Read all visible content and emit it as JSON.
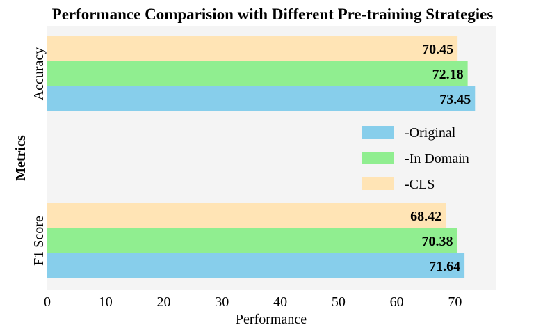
{
  "chart_data": {
    "type": "bar",
    "orientation": "horizontal",
    "title": "Performance Comparision with Different Pre-training Strategies",
    "xlabel": "Performance",
    "ylabel": "Metrics",
    "xlim": [
      0,
      77
    ],
    "xticks": [
      "0",
      "10",
      "20",
      "30",
      "40",
      "50",
      "60",
      "70"
    ],
    "grid": false,
    "legend_position": "center-right",
    "categories": [
      "Accuracy",
      "F1 Score"
    ],
    "series": [
      {
        "name": "-Original",
        "color": "#87ceeb",
        "values": [
          73.45,
          71.64
        ],
        "labels": [
          "73.45",
          "71.64"
        ]
      },
      {
        "name": "-In Domain",
        "color": "#90ee90",
        "values": [
          72.18,
          70.38
        ],
        "labels": [
          "72.18",
          "70.38"
        ]
      },
      {
        "name": "-CLS",
        "color": "#ffe4b5",
        "values": [
          70.45,
          68.42
        ],
        "labels": [
          "70.45",
          "68.42"
        ]
      }
    ],
    "plot_background": "#f4f4f4"
  }
}
